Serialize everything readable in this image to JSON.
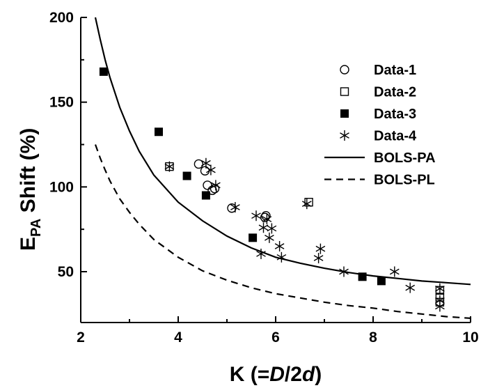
{
  "chart_data": {
    "type": "scatter",
    "xlabel": {
      "prefix": "K (=",
      "D": "D",
      "slash": "/2",
      "d": "d",
      "suffix": ")"
    },
    "ylabel": {
      "E": "E",
      "sub": "PA",
      "rest": " Shift (%)"
    },
    "xlim": [
      2,
      10
    ],
    "ylim": [
      20,
      200
    ],
    "x_ticks": [
      2,
      4,
      6,
      8,
      10
    ],
    "y_ticks": [
      50,
      100,
      150,
      200
    ],
    "grid": false,
    "legend_position": "top-right",
    "series": [
      {
        "name": "Data-1",
        "marker": "open-circle",
        "points": [
          [
            4.42,
            113.5
          ],
          [
            4.55,
            109.5
          ],
          [
            4.6,
            101
          ],
          [
            4.7,
            98
          ],
          [
            4.75,
            99
          ],
          [
            5.1,
            87.5
          ],
          [
            5.78,
            82
          ],
          [
            5.8,
            83
          ]
        ]
      },
      {
        "name": "Data-2",
        "marker": "open-square",
        "points": [
          [
            3.82,
            112
          ],
          [
            6.68,
            91
          ],
          [
            9.37,
            39
          ],
          [
            9.37,
            35
          ],
          [
            9.37,
            32
          ]
        ]
      },
      {
        "name": "Data-3",
        "marker": "filled-square",
        "points": [
          [
            2.47,
            168
          ],
          [
            3.6,
            132.5
          ],
          [
            4.18,
            106.5
          ],
          [
            4.57,
            95
          ],
          [
            5.53,
            70
          ],
          [
            7.78,
            47
          ],
          [
            8.17,
            44.5
          ]
        ]
      },
      {
        "name": "Data-4",
        "marker": "asterisk",
        "points": [
          [
            3.82,
            112
          ],
          [
            4.57,
            114
          ],
          [
            4.67,
            110
          ],
          [
            4.77,
            101
          ],
          [
            5.17,
            88
          ],
          [
            5.6,
            83
          ],
          [
            5.82,
            81
          ],
          [
            5.75,
            76
          ],
          [
            5.92,
            75.5
          ],
          [
            5.87,
            70
          ],
          [
            5.7,
            60.5
          ],
          [
            6.08,
            65
          ],
          [
            6.12,
            58.5
          ],
          [
            6.64,
            90
          ],
          [
            6.92,
            63.5
          ],
          [
            6.88,
            58
          ],
          [
            7.4,
            50
          ],
          [
            8.44,
            50
          ],
          [
            8.76,
            40.5
          ],
          [
            9.37,
            40
          ],
          [
            9.37,
            33
          ],
          [
            9.37,
            29.5
          ]
        ]
      },
      {
        "name": "BOLS-PA",
        "style": "solid-line",
        "x": [
          2.3,
          2.4,
          2.5,
          2.6,
          2.8,
          3.0,
          3.2,
          3.5,
          4.0,
          4.5,
          5.0,
          5.5,
          6.0,
          6.5,
          7.0,
          7.5,
          8.0,
          8.5,
          9.0,
          9.5,
          10.0
        ],
        "y": [
          200,
          187,
          175,
          164.5,
          147,
          133,
          121,
          107,
          91,
          80,
          71,
          64,
          58.5,
          55,
          52,
          49.5,
          47.5,
          46,
          44.5,
          43.5,
          42.5
        ]
      },
      {
        "name": "BOLS-PL",
        "style": "dashed-line",
        "x": [
          2.3,
          2.4,
          2.5,
          2.6,
          2.8,
          3.0,
          3.2,
          3.5,
          4.0,
          4.5,
          5.0,
          5.5,
          6.0,
          6.5,
          7.0,
          7.5,
          8.0,
          8.5,
          9.0,
          9.5,
          10.0
        ],
        "y": [
          125,
          117,
          110,
          103.5,
          93,
          85,
          78,
          69,
          58.5,
          50.5,
          45,
          40.5,
          37,
          34.5,
          32,
          30,
          28.5,
          26.5,
          25,
          23.5,
          22.5
        ]
      }
    ]
  }
}
